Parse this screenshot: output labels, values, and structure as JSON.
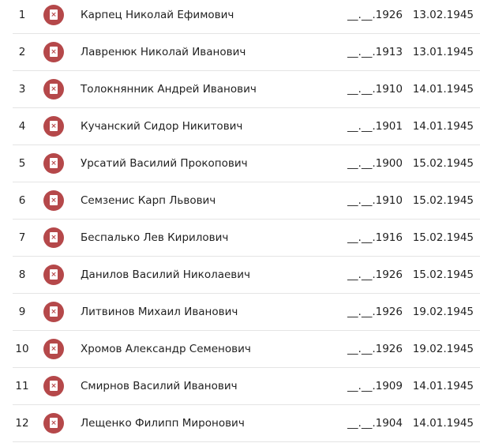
{
  "colors": {
    "icon": "#b5484a",
    "divider": "#e4e4e4"
  },
  "icon": {
    "name": "document-x-icon",
    "glyph": "×"
  },
  "rows": [
    {
      "num": "1",
      "name": "Карпец Николай Ефимович",
      "birth": "__.__.1926",
      "death": "13.02.1945"
    },
    {
      "num": "2",
      "name": "Лавренюк Николай Иванович",
      "birth": "__.__.1913",
      "death": "13.01.1945"
    },
    {
      "num": "3",
      "name": "Толокнянник Андрей Иванович",
      "birth": "__.__.1910",
      "death": "14.01.1945"
    },
    {
      "num": "4",
      "name": "Кучанский Сидор Никитович",
      "birth": "__.__.1901",
      "death": "14.01.1945"
    },
    {
      "num": "5",
      "name": "Урсатий Василий Прокопович",
      "birth": "__.__.1900",
      "death": "15.02.1945"
    },
    {
      "num": "6",
      "name": "Семзенис Карп Львович",
      "birth": "__.__.1910",
      "death": "15.02.1945"
    },
    {
      "num": "7",
      "name": "Беспалько Лев Кирилович",
      "birth": "__.__.1916",
      "death": "15.02.1945"
    },
    {
      "num": "8",
      "name": "Данилов Василий Николаевич",
      "birth": "__.__.1926",
      "death": "15.02.1945"
    },
    {
      "num": "9",
      "name": "Литвинов Михаил Иванович",
      "birth": "__.__.1926",
      "death": "19.02.1945"
    },
    {
      "num": "10",
      "name": "Хромов Александр Семенович",
      "birth": "__.__.1926",
      "death": "19.02.1945"
    },
    {
      "num": "11",
      "name": "Смирнов Василий Иванович",
      "birth": "__.__.1909",
      "death": "14.01.1945"
    },
    {
      "num": "12",
      "name": "Лещенко Филипп Миронович",
      "birth": "__.__.1904",
      "death": "14.01.1945"
    }
  ]
}
